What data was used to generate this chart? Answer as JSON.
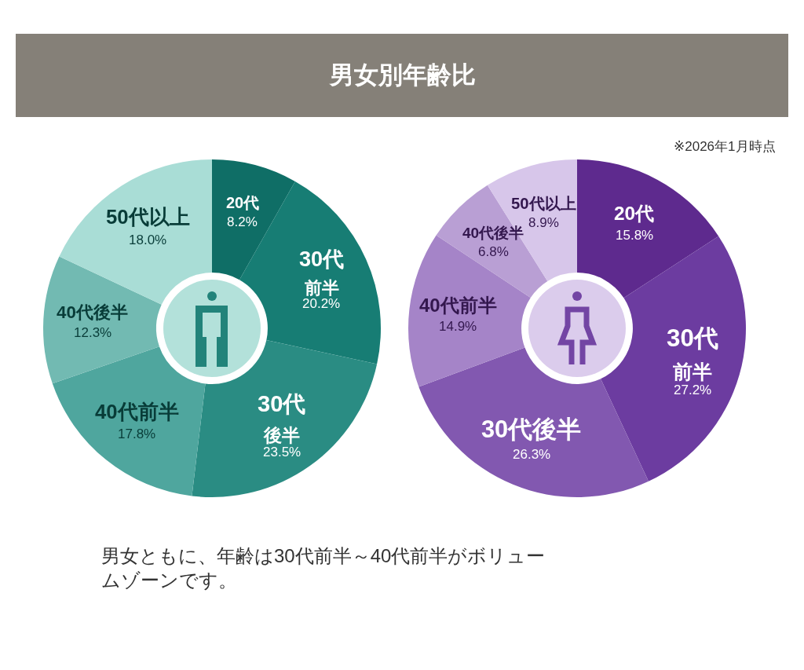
{
  "chart_data": [
    {
      "type": "donut",
      "title": "男女別年齢比",
      "categories": [
        "20代",
        "30代前半",
        "30代後半",
        "40代前半",
        "40代後半",
        "50代以上"
      ],
      "values": [
        8.2,
        20.2,
        23.5,
        17.8,
        12.3,
        18.0
      ],
      "value_labels": [
        "8.2%",
        "20.2%",
        "23.5%",
        "17.8%",
        "12.3%",
        "18.0%"
      ],
      "colors": [
        "#0f6e66",
        "#177d74",
        "#2a8c83",
        "#4fa69e",
        "#72bab2",
        "#a9ddd6"
      ],
      "annotations": [
        "男女ともに、年齢は30代前半～40代前半がボリュームゾーンです。"
      ]
    },
    {
      "type": "donut",
      "categories": [
        "20代",
        "30代前半",
        "30代後半",
        "40代前半",
        "40代後半",
        "50代以上"
      ],
      "values": [
        15.8,
        27.2,
        26.3,
        14.9,
        6.8,
        8.9
      ],
      "value_labels": [
        "15.8%",
        "27.2%",
        "26.3%",
        "14.9%",
        "6.8%",
        "8.9%"
      ],
      "colors": [
        "#5e2a8e",
        "#6c3ca0",
        "#8258b0",
        "#a584c8",
        "#b99fd4",
        "#d7c6ea"
      ],
      "annotations": [
        "※2026年1月時点"
      ]
    }
  ]
}
